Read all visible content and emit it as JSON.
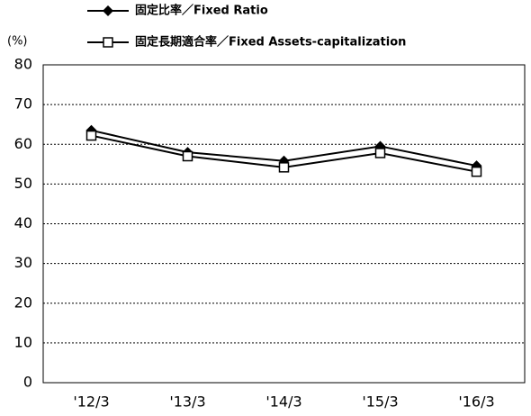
{
  "chart_data": {
    "type": "line",
    "y_label": "(%)",
    "categories": [
      "'12/3",
      "'13/3",
      "'14/3",
      "'15/3",
      "'16/3"
    ],
    "series": [
      {
        "name": "固定比率／Fixed Ratio",
        "color": "#000000",
        "marker": "diamond",
        "values": [
          63.5,
          58,
          55.8,
          59.5,
          54.6
        ]
      },
      {
        "name": "固定長期適合率／Fixed Assets-capitalization",
        "color": "#000000",
        "marker": "square",
        "values": [
          62.2,
          57,
          54.2,
          57.8,
          53.1
        ]
      }
    ],
    "ylim": [
      0,
      80
    ],
    "yticks": [
      0,
      10,
      20,
      30,
      40,
      50,
      60,
      70,
      80
    ],
    "grid": true
  }
}
